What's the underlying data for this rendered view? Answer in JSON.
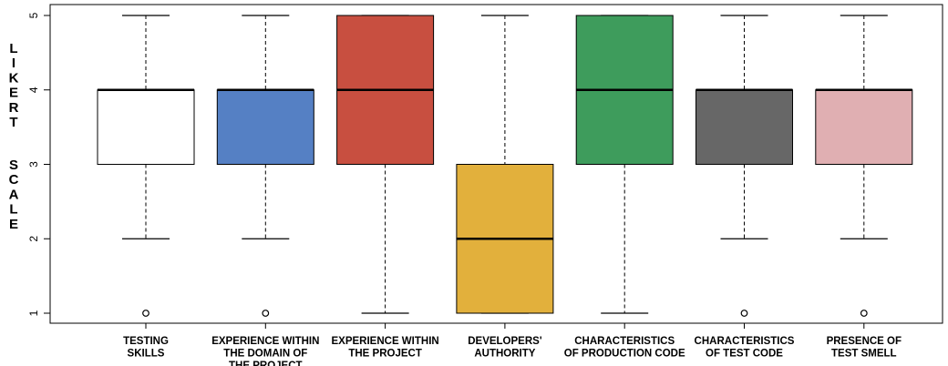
{
  "chart_data": {
    "type": "box",
    "ylabel": "LIKERT SCALE",
    "ylim": [
      1,
      5
    ],
    "yticks": [
      "1",
      "2",
      "3",
      "4",
      "5"
    ],
    "categories": [
      {
        "label": [
          "TESTING",
          "SKILLS"
        ],
        "min": 2,
        "q1": 3,
        "median": 4,
        "q3": 4,
        "max": 5,
        "outliers": [
          1
        ],
        "color": "#ffffff"
      },
      {
        "label": [
          "EXPERIENCE WITHIN",
          "THE DOMAIN OF",
          "THE PROJECT"
        ],
        "min": 2,
        "q1": 3,
        "median": 4,
        "q3": 4,
        "max": 5,
        "outliers": [
          1
        ],
        "color": "#5580c4"
      },
      {
        "label": [
          "EXPERIENCE WITHIN",
          "THE PROJECT"
        ],
        "min": 1,
        "q1": 3,
        "median": 4,
        "q3": 5,
        "max": 5,
        "outliers": [],
        "color": "#c84f40"
      },
      {
        "label": [
          "DEVELOPERS'",
          "AUTHORITY"
        ],
        "min": 1,
        "q1": 1,
        "median": 2,
        "q3": 3,
        "max": 5,
        "outliers": [],
        "color": "#e2b03c"
      },
      {
        "label": [
          "CHARACTERISTICS",
          "OF PRODUCTION CODE"
        ],
        "min": 1,
        "q1": 3,
        "median": 4,
        "q3": 5,
        "max": 5,
        "outliers": [],
        "color": "#3e9c5c"
      },
      {
        "label": [
          "CHARACTERISTICS",
          "OF TEST CODE"
        ],
        "min": 2,
        "q1": 3,
        "median": 4,
        "q3": 4,
        "max": 5,
        "outliers": [
          1
        ],
        "color": "#676767"
      },
      {
        "label": [
          "PRESENCE OF",
          "TEST SMELL"
        ],
        "min": 2,
        "q1": 3,
        "median": 4,
        "q3": 4,
        "max": 5,
        "outliers": [
          1
        ],
        "color": "#e0afb2"
      }
    ]
  }
}
